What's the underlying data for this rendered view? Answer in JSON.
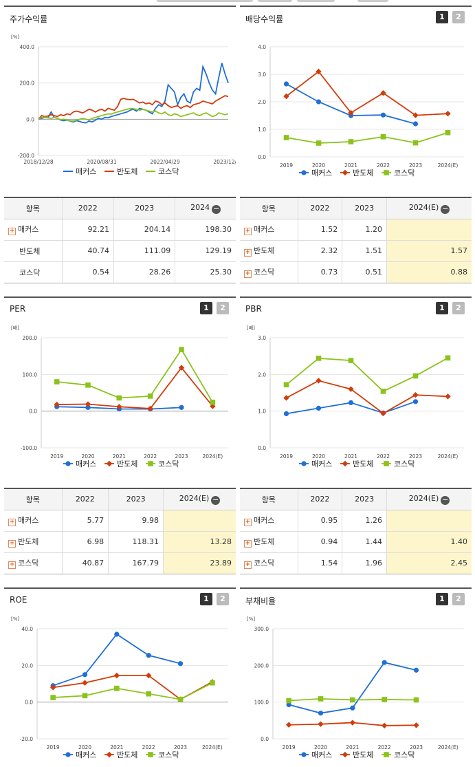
{
  "colors": {
    "makers": "#1f6fd6",
    "semi": "#d23c0a",
    "kosdaq": "#8bc31c"
  },
  "legend": [
    "매커스",
    "반도체",
    "코스닥"
  ],
  "panels": {
    "stock": {
      "title": "주가수익률"
    },
    "dividend": {
      "title": "배당수익률",
      "btn1": "1",
      "btn2": "2"
    },
    "per": {
      "title": "PER",
      "btn1": "1",
      "btn2": "2"
    },
    "pbr": {
      "title": "PBR",
      "btn1": "1",
      "btn2": "2"
    },
    "roe": {
      "title": "ROE",
      "btn1": "1",
      "btn2": "2"
    },
    "debt": {
      "title": "부채비율",
      "btn1": "1",
      "btn2": "2"
    }
  },
  "tables": {
    "stock": {
      "headers": [
        "항목",
        "2022",
        "2023",
        "2024"
      ],
      "rows": [
        {
          "name": "매커스",
          "plus": true,
          "values": [
            "92.21",
            "204.14",
            "198.30"
          ]
        },
        {
          "name": "반도체",
          "plus": false,
          "values": [
            "40.74",
            "111.09",
            "129.19"
          ]
        },
        {
          "name": "코스닥",
          "plus": false,
          "values": [
            "0.54",
            "28.26",
            "25.30"
          ]
        }
      ]
    },
    "dividend": {
      "headers": [
        "항목",
        "2022",
        "2023",
        "2024(E)"
      ],
      "rows": [
        {
          "name": "매커스",
          "plus": true,
          "values": [
            "1.52",
            "1.20",
            ""
          ]
        },
        {
          "name": "반도체",
          "plus": true,
          "values": [
            "2.32",
            "1.51",
            "1.57"
          ]
        },
        {
          "name": "코스닥",
          "plus": true,
          "values": [
            "0.73",
            "0.51",
            "0.88"
          ]
        }
      ]
    },
    "per": {
      "headers": [
        "항목",
        "2022",
        "2023",
        "2024(E)"
      ],
      "rows": [
        {
          "name": "매커스",
          "plus": true,
          "values": [
            "5.77",
            "9.98",
            ""
          ]
        },
        {
          "name": "반도체",
          "plus": true,
          "values": [
            "6.98",
            "118.31",
            "13.28"
          ]
        },
        {
          "name": "코스닥",
          "plus": true,
          "values": [
            "40.87",
            "167.79",
            "23.89"
          ]
        }
      ]
    },
    "pbr": {
      "headers": [
        "항목",
        "2022",
        "2023",
        "2024(E)"
      ],
      "rows": [
        {
          "name": "매커스",
          "plus": true,
          "values": [
            "0.95",
            "1.26",
            ""
          ]
        },
        {
          "name": "반도체",
          "plus": true,
          "values": [
            "0.94",
            "1.44",
            "1.40"
          ]
        },
        {
          "name": "코스닥",
          "plus": true,
          "values": [
            "1.54",
            "1.96",
            "2.45"
          ]
        }
      ]
    }
  },
  "chart_data": [
    {
      "id": "stock",
      "type": "line",
      "title": "주가수익률",
      "ylabel": "[%]",
      "ylim": [
        -200,
        400
      ],
      "yticks": [
        "400.0",
        "200.0",
        "0.0",
        "-200.0"
      ],
      "xticks": [
        "2018/12/28",
        "2020/08/31",
        "2022/04/29",
        "2023/12/28"
      ],
      "x_range": [
        0,
        60
      ],
      "series": [
        {
          "name": "매커스",
          "x": [
            0,
            1,
            2,
            3,
            4,
            5,
            6,
            7,
            8,
            9,
            10,
            11,
            12,
            13,
            14,
            15,
            16,
            17,
            18,
            19,
            20,
            21,
            22,
            23,
            24,
            25,
            26,
            27,
            28,
            29,
            30,
            31,
            32,
            33,
            34,
            35,
            36,
            37,
            38,
            39,
            40,
            41,
            42,
            43,
            44,
            45,
            46,
            47,
            48,
            49,
            50,
            51,
            52,
            53,
            54,
            55,
            56,
            57,
            58,
            59,
            60
          ],
          "values": [
            0,
            5,
            10,
            8,
            40,
            10,
            5,
            -5,
            -8,
            -5,
            -10,
            -15,
            -8,
            -12,
            -18,
            -20,
            -10,
            -15,
            -5,
            5,
            0,
            10,
            8,
            15,
            20,
            25,
            30,
            35,
            40,
            50,
            55,
            45,
            60,
            55,
            50,
            40,
            30,
            60,
            80,
            70,
            100,
            190,
            170,
            150,
            80,
            120,
            140,
            100,
            90,
            150,
            170,
            160,
            290,
            250,
            200,
            160,
            140,
            230,
            310,
            250,
            200
          ]
        },
        {
          "name": "반도체",
          "x": [
            0,
            1,
            2,
            3,
            4,
            5,
            6,
            7,
            8,
            9,
            10,
            11,
            12,
            13,
            14,
            15,
            16,
            17,
            18,
            19,
            20,
            21,
            22,
            23,
            24,
            25,
            26,
            27,
            28,
            29,
            30,
            31,
            32,
            33,
            34,
            35,
            36,
            37,
            38,
            39,
            40,
            41,
            42,
            43,
            44,
            45,
            46,
            47,
            48,
            49,
            50,
            51,
            52,
            53,
            54,
            55,
            56,
            57,
            58,
            59,
            60
          ],
          "values": [
            0,
            20,
            15,
            18,
            25,
            20,
            15,
            25,
            20,
            30,
            25,
            40,
            45,
            40,
            35,
            45,
            55,
            50,
            40,
            50,
            55,
            45,
            60,
            55,
            50,
            70,
            110,
            115,
            110,
            108,
            110,
            100,
            90,
            95,
            85,
            90,
            80,
            100,
            95,
            80,
            90,
            75,
            65,
            70,
            75,
            60,
            70,
            75,
            65,
            80,
            85,
            90,
            100,
            95,
            90,
            85,
            100,
            110,
            120,
            130,
            125
          ]
        },
        {
          "name": "코스닥",
          "x": [
            0,
            1,
            2,
            3,
            4,
            5,
            6,
            7,
            8,
            9,
            10,
            11,
            12,
            13,
            14,
            15,
            16,
            17,
            18,
            19,
            20,
            21,
            22,
            23,
            24,
            25,
            26,
            27,
            28,
            29,
            30,
            31,
            32,
            33,
            34,
            35,
            36,
            37,
            38,
            39,
            40,
            41,
            42,
            43,
            44,
            45,
            46,
            47,
            48,
            49,
            50,
            51,
            52,
            53,
            54,
            55,
            56,
            57,
            58,
            59,
            60
          ],
          "values": [
            0,
            10,
            12,
            8,
            5,
            10,
            5,
            -3,
            0,
            -5,
            -8,
            -10,
            -5,
            0,
            5,
            0,
            -5,
            5,
            10,
            15,
            20,
            25,
            30,
            28,
            35,
            40,
            45,
            50,
            55,
            60,
            58,
            55,
            50,
            55,
            50,
            45,
            40,
            45,
            35,
            30,
            40,
            25,
            20,
            30,
            25,
            15,
            20,
            25,
            30,
            35,
            25,
            20,
            30,
            35,
            25,
            15,
            20,
            35,
            30,
            25,
            30
          ]
        }
      ]
    },
    {
      "id": "dividend",
      "type": "line",
      "title": "배당수익률",
      "ylabel": "",
      "ylim": [
        0,
        4
      ],
      "yticks": [
        "4.0",
        "3.0",
        "2.0",
        "1.0",
        "0.0"
      ],
      "categories": [
        "2019",
        "2020",
        "2021",
        "2022",
        "2023",
        "2024(E)"
      ],
      "series": [
        {
          "name": "매커스",
          "values": [
            2.65,
            2.0,
            1.5,
            1.52,
            1.2,
            null
          ]
        },
        {
          "name": "반도체",
          "values": [
            2.2,
            3.1,
            1.6,
            2.32,
            1.51,
            1.57
          ]
        },
        {
          "name": "코스닥",
          "values": [
            0.7,
            0.5,
            0.55,
            0.73,
            0.51,
            0.88
          ]
        }
      ]
    },
    {
      "id": "per",
      "type": "line",
      "title": "PER",
      "ylabel": "[배]",
      "ylim": [
        -100,
        200
      ],
      "yticks": [
        "200.0",
        "100.0",
        "0.0",
        "-100.0"
      ],
      "categories": [
        "2019",
        "2020",
        "2021",
        "2022",
        "2023",
        "2024(E)"
      ],
      "series": [
        {
          "name": "매커스",
          "values": [
            12,
            10,
            6,
            5.77,
            9.98,
            null
          ]
        },
        {
          "name": "반도체",
          "values": [
            18,
            19,
            12,
            6.98,
            118.31,
            13.28
          ]
        },
        {
          "name": "코스닥",
          "values": [
            80,
            71,
            36,
            40.87,
            167.79,
            23.89
          ]
        }
      ]
    },
    {
      "id": "pbr",
      "type": "line",
      "title": "PBR",
      "ylabel": "[배]",
      "ylim": [
        0,
        3
      ],
      "yticks": [
        "3.0",
        "2.0",
        "1.0",
        "0.0"
      ],
      "categories": [
        "2019",
        "2020",
        "2021",
        "2022",
        "2023",
        "2024(E)"
      ],
      "series": [
        {
          "name": "매커스",
          "values": [
            0.93,
            1.08,
            1.23,
            0.95,
            1.26,
            null
          ]
        },
        {
          "name": "반도체",
          "values": [
            1.36,
            1.83,
            1.6,
            0.94,
            1.44,
            1.4
          ]
        },
        {
          "name": "코스닥",
          "values": [
            1.72,
            2.44,
            2.38,
            1.54,
            1.96,
            2.45
          ]
        }
      ]
    },
    {
      "id": "roe",
      "type": "line",
      "title": "ROE",
      "ylabel": "[%]",
      "ylim": [
        -20,
        40
      ],
      "yticks": [
        "40.0",
        "20.0",
        "0.0",
        "-20.0"
      ],
      "categories": [
        "2019",
        "2020",
        "2021",
        "2022",
        "2023",
        "2024(E)"
      ],
      "series": [
        {
          "name": "매커스",
          "values": [
            9,
            15,
            37,
            25.5,
            21,
            null
          ]
        },
        {
          "name": "반도체",
          "values": [
            8,
            10.5,
            14.5,
            14.5,
            1.5,
            11
          ]
        },
        {
          "name": "코스닥",
          "values": [
            2.5,
            3.5,
            7.5,
            4.5,
            1.5,
            10.5
          ]
        }
      ]
    },
    {
      "id": "debt",
      "type": "line",
      "title": "부채비율",
      "ylabel": "[%]",
      "ylim": [
        0,
        300
      ],
      "yticks": [
        "300.0",
        "200.0",
        "100.0",
        "0.0"
      ],
      "categories": [
        "2019",
        "2020",
        "2021",
        "2022",
        "2023",
        "2024(E)"
      ],
      "series": [
        {
          "name": "매커스",
          "values": [
            93,
            70,
            84,
            208,
            187,
            null
          ]
        },
        {
          "name": "반도체",
          "values": [
            38,
            40,
            44,
            36,
            37,
            null
          ]
        },
        {
          "name": "코스닥",
          "values": [
            104,
            109,
            106,
            107,
            106,
            null
          ]
        }
      ]
    }
  ]
}
